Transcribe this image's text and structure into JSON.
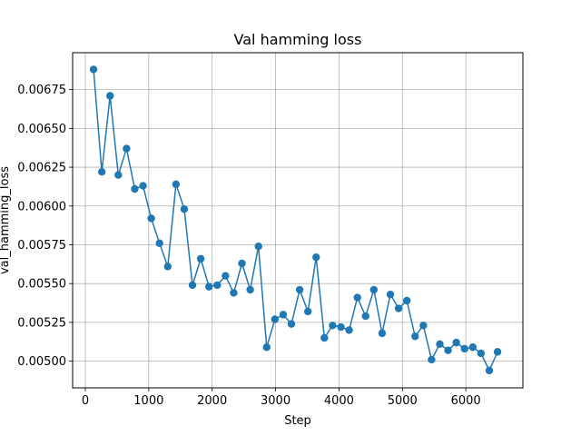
{
  "chart_data": {
    "type": "line",
    "title": "Val hamming loss",
    "xlabel": "Step",
    "ylabel": "val_hamming_loss",
    "xlim": [
      -200,
      6900
    ],
    "ylim": [
      0.004828,
      0.006988
    ],
    "grid": true,
    "marker": "circle",
    "colors": {
      "series": "#1f77b4",
      "grid": "#b0b0b0",
      "axis": "#000000"
    },
    "xticks": [
      0,
      1000,
      2000,
      3000,
      4000,
      5000,
      6000
    ],
    "xtick_labels": [
      "0",
      "1000",
      "2000",
      "3000",
      "4000",
      "5000",
      "6000"
    ],
    "yticks": [
      0.005,
      0.00525,
      0.0055,
      0.00575,
      0.006,
      0.00625,
      0.0065,
      0.00675
    ],
    "ytick_labels": [
      "0.00500",
      "0.00525",
      "0.00550",
      "0.00575",
      "0.00600",
      "0.00625",
      "0.00650",
      "0.00675"
    ],
    "series": [
      {
        "x": [
          130,
          260,
          390,
          520,
          650,
          780,
          910,
          1040,
          1170,
          1300,
          1430,
          1560,
          1690,
          1820,
          1950,
          2080,
          2210,
          2340,
          2470,
          2600,
          2730,
          2860,
          2990,
          3120,
          3250,
          3380,
          3510,
          3640,
          3770,
          3900,
          4030,
          4160,
          4290,
          4420,
          4550,
          4680,
          4810,
          4940,
          5070,
          5200,
          5330,
          5460,
          5590,
          5720,
          5850,
          5980,
          6110,
          6240,
          6370,
          6500
        ],
        "y": [
          0.00688,
          0.00622,
          0.00671,
          0.0062,
          0.00637,
          0.00611,
          0.00613,
          0.00592,
          0.00576,
          0.00561,
          0.00614,
          0.00598,
          0.00549,
          0.00566,
          0.00548,
          0.00549,
          0.00555,
          0.00544,
          0.00563,
          0.00546,
          0.00574,
          0.00509,
          0.00527,
          0.0053,
          0.00524,
          0.00546,
          0.00532,
          0.00567,
          0.00515,
          0.00523,
          0.00522,
          0.0052,
          0.00541,
          0.00529,
          0.00546,
          0.00518,
          0.00543,
          0.00534,
          0.00539,
          0.00516,
          0.00523,
          0.00501,
          0.00511,
          0.00507,
          0.00512,
          0.00508,
          0.00509,
          0.00505,
          0.00494,
          0.00506
        ]
      }
    ]
  }
}
